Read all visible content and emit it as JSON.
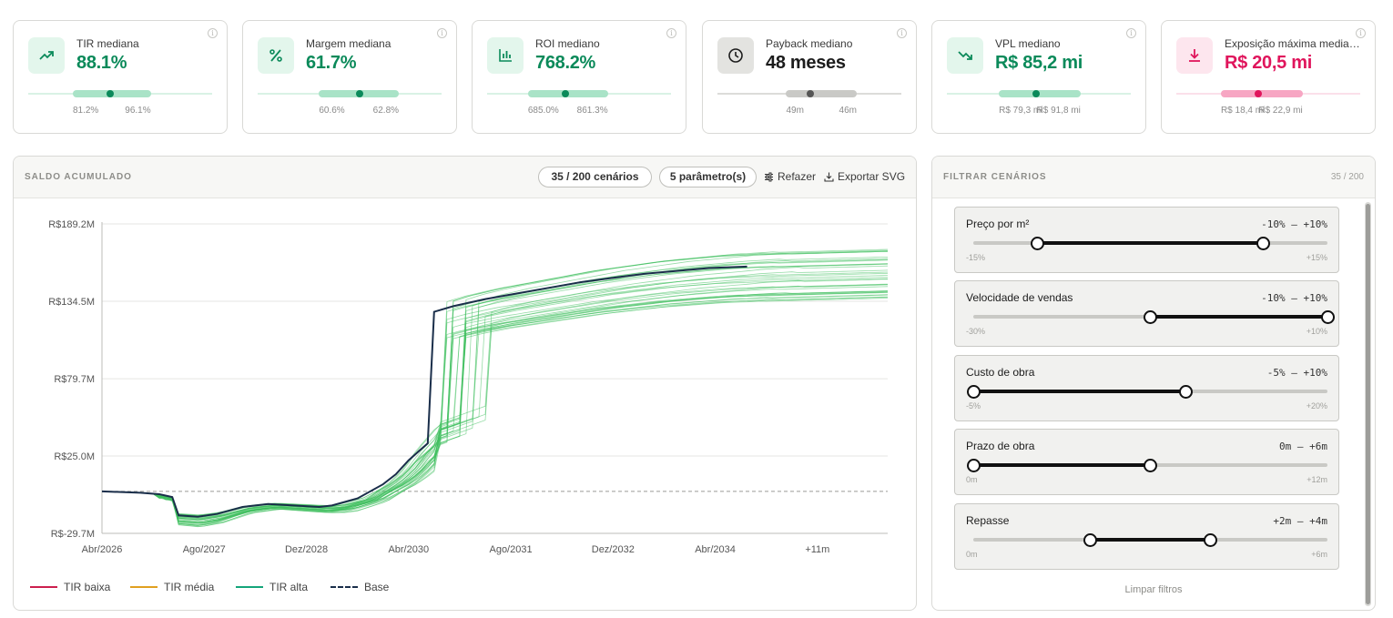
{
  "kpis": [
    {
      "label": "TIR mediana",
      "value": "88.1%",
      "low": "81.2%",
      "high": "96.1%",
      "icon": "trend-up-icon",
      "color": "#0b8a5a",
      "bg": "#e3f6ec",
      "band_start": 0.24,
      "band_end": 0.66,
      "median": 0.44
    },
    {
      "label": "Margem mediana",
      "value": "61.7%",
      "low": "60.6%",
      "high": "62.8%",
      "icon": "percent-icon",
      "color": "#0b8a5a",
      "bg": "#e3f6ec",
      "band_start": 0.33,
      "band_end": 0.76,
      "median": 0.55
    },
    {
      "label": "ROI mediano",
      "value": "768.2%",
      "low": "685.0%",
      "high": "861.3%",
      "icon": "bar-chart-icon",
      "color": "#0b8a5a",
      "bg": "#e3f6ec",
      "band_start": 0.22,
      "band_end": 0.65,
      "median": 0.42
    },
    {
      "label": "Payback mediano",
      "value": "48 meses",
      "low": "49m",
      "high": "46m",
      "icon": "clock-icon",
      "color": "#1c1c1c",
      "bg": "#e3e3e0",
      "band_start": 0.37,
      "band_end": 0.75,
      "median": 0.5
    },
    {
      "label": "VPL mediano",
      "value": "R$ 85,2 mi",
      "low": "R$ 79,3 mi",
      "high": "R$ 91,8 mi",
      "icon": "trend-down-icon",
      "color": "#0b8a5a",
      "bg": "#e3f6ec",
      "band_start": 0.28,
      "band_end": 0.72,
      "median": 0.48
    },
    {
      "label": "Exposição máxima media…",
      "value": "R$ 20,5 mi",
      "low": "R$ 18,4 mi",
      "high": "R$ 22,9 mi",
      "icon": "download-icon",
      "color": "#e0155c",
      "bg": "#fde6ee",
      "band_start": 0.24,
      "band_end": 0.68,
      "median": 0.44
    }
  ],
  "chart_panel": {
    "title": "SALDO ACUMULADO",
    "scenarios_pill": "35 / 200 cenários",
    "params_pill": "5 parâmetro(s)",
    "redo_label": "Refazer",
    "export_label": "Exportar SVG"
  },
  "chart_data": {
    "type": "line",
    "y_ticks": [
      "R$189.2M",
      "R$134.5M",
      "R$79.7M",
      "R$25.0M",
      "R$-29.7M"
    ],
    "y_tick_values": [
      189.2,
      134.5,
      79.7,
      25.0,
      -29.7
    ],
    "ylim": [
      -29.7,
      189.2
    ],
    "x_ticks": [
      "Abr/2026",
      "Ago/2027",
      "Dez/2028",
      "Abr/2030",
      "Ago/2031",
      "Dez/2032",
      "Abr/2034",
      "+11m"
    ],
    "x_tick_months": [
      0,
      16,
      32,
      48,
      64,
      80,
      96,
      112
    ],
    "x_max_months": 123,
    "grid": true,
    "base_value": 0,
    "median_series": [
      [
        0,
        0
      ],
      [
        6,
        -1
      ],
      [
        9,
        -2
      ],
      [
        11,
        -4
      ],
      [
        12,
        -17
      ],
      [
        15,
        -18
      ],
      [
        18,
        -16
      ],
      [
        22,
        -11
      ],
      [
        26,
        -9
      ],
      [
        30,
        -10
      ],
      [
        34,
        -11
      ],
      [
        36,
        -10
      ],
      [
        40,
        -5
      ],
      [
        44,
        5
      ],
      [
        46,
        12
      ],
      [
        48,
        22
      ],
      [
        50,
        30
      ],
      [
        51,
        34
      ],
      [
        52,
        127
      ],
      [
        55,
        131
      ],
      [
        60,
        136
      ],
      [
        65,
        140
      ],
      [
        70,
        144
      ],
      [
        75,
        148
      ],
      [
        80,
        151
      ],
      [
        85,
        154
      ],
      [
        90,
        156
      ],
      [
        95,
        158
      ],
      [
        101,
        159
      ]
    ],
    "scenario_count": 35,
    "scenario_color": "#3fbf5f",
    "median_color": "#1a2e4a"
  },
  "legend": [
    {
      "label": "TIR baixa",
      "color": "#cc1f4e",
      "style": "solid"
    },
    {
      "label": "TIR média",
      "color": "#e0a020",
      "style": "solid"
    },
    {
      "label": "TIR alta",
      "color": "#14a57a",
      "style": "solid"
    },
    {
      "label": "Base",
      "color": "#1a2e4a",
      "style": "dashed"
    }
  ],
  "filters": {
    "title": "FILTRAR CENÁRIOS",
    "count": "35 / 200",
    "clear_label": "Limpar filtros",
    "items": [
      {
        "name": "Preço por m²",
        "range": "-10% – +10%",
        "min": "-15%",
        "max": "+15%",
        "lo": 0.18,
        "hi": 0.82
      },
      {
        "name": "Velocidade de vendas",
        "range": "-10% – +10%",
        "min": "-30%",
        "max": "+10%",
        "lo": 0.5,
        "hi": 1.0
      },
      {
        "name": "Custo de obra",
        "range": "-5% – +10%",
        "min": "-5%",
        "max": "+20%",
        "lo": 0.0,
        "hi": 0.6
      },
      {
        "name": "Prazo de obra",
        "range": "0m – +6m",
        "min": "0m",
        "max": "+12m",
        "lo": 0.0,
        "hi": 0.5
      },
      {
        "name": "Repasse",
        "range": "+2m – +4m",
        "min": "0m",
        "max": "+6m",
        "lo": 0.33,
        "hi": 0.67
      }
    ]
  }
}
